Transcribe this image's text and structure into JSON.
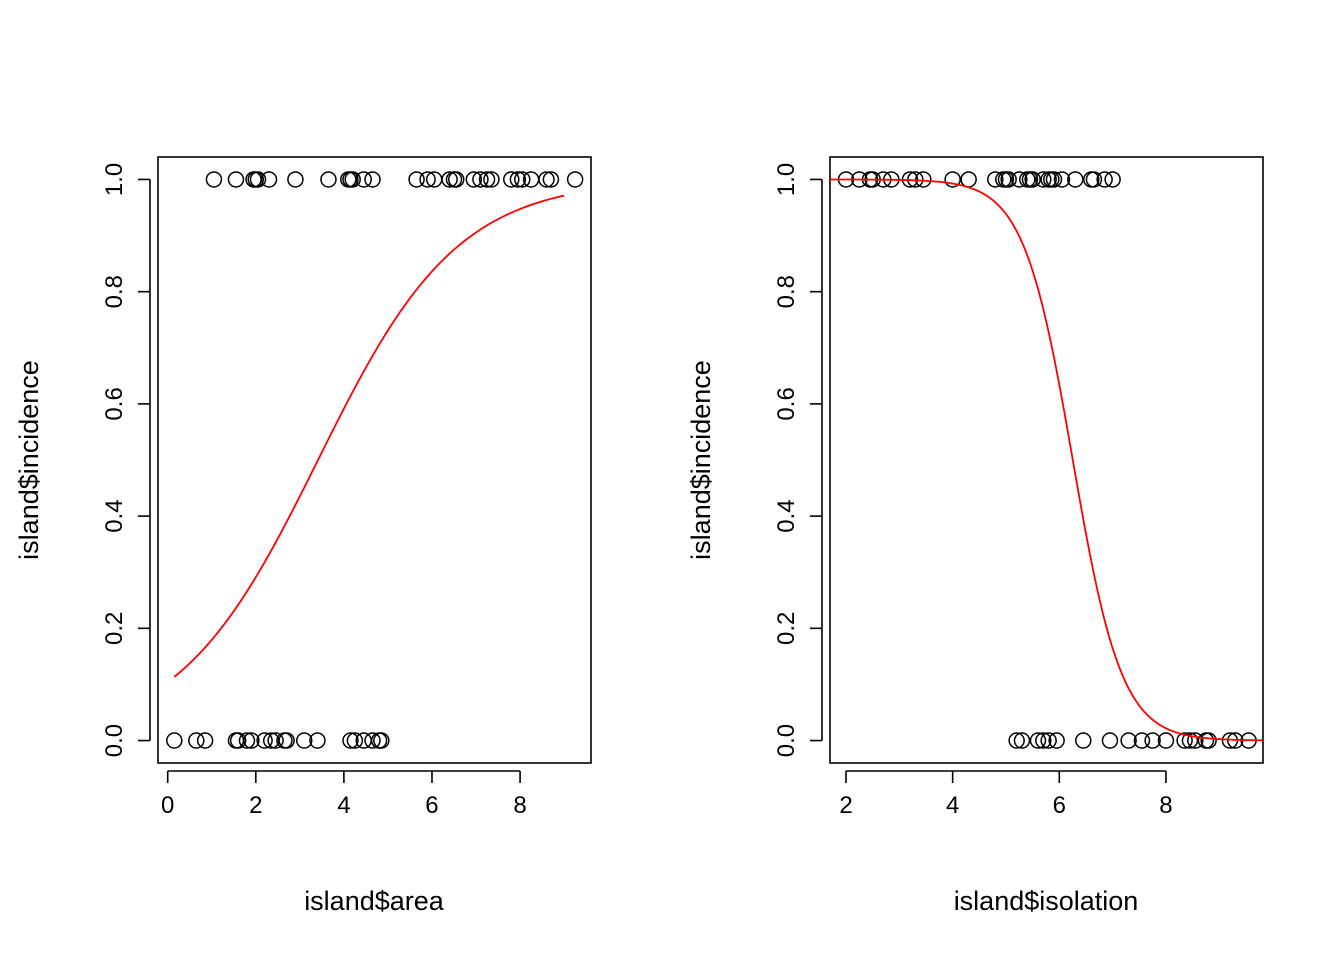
{
  "chart_data": [
    {
      "type": "scatter",
      "xlabel": "island$area",
      "ylabel": "island$incidence",
      "xlim": [
        -0.22,
        9.61
      ],
      "ylim": [
        -0.04,
        1.04
      ],
      "xticks": [
        0,
        2,
        4,
        6,
        8
      ],
      "yticks": [
        0.0,
        0.2,
        0.4,
        0.6,
        0.8,
        1.0
      ],
      "xtick_labels": [
        "0",
        "2",
        "4",
        "6",
        "8"
      ],
      "ytick_labels": [
        "0.0",
        "0.2",
        "0.4",
        "0.6",
        "0.8",
        "1.0"
      ],
      "points_y1": [
        1.05,
        1.55,
        1.95,
        2.0,
        2.05,
        2.3,
        2.9,
        3.65,
        4.1,
        4.15,
        4.2,
        4.45,
        4.65,
        5.65,
        5.9,
        6.05,
        6.4,
        6.5,
        6.55,
        6.95,
        7.1,
        7.25,
        7.35,
        7.8,
        7.95,
        8.05,
        8.25,
        8.6,
        8.7,
        9.25
      ],
      "points_y0": [
        0.15,
        0.65,
        0.85,
        1.55,
        1.6,
        1.8,
        1.9,
        2.2,
        2.35,
        2.45,
        2.65,
        2.7,
        3.1,
        3.4,
        4.15,
        4.25,
        4.45,
        4.65,
        4.8,
        4.85
      ],
      "fit": {
        "color": "#ff0000",
        "intercept": -2.15,
        "slope": 0.63,
        "x_from": 0.15,
        "x_to": 9.0
      },
      "grid": false
    },
    {
      "type": "scatter",
      "xlabel": "island$isolation",
      "ylabel": "island$incidence",
      "xlim": [
        1.7,
        9.82
      ],
      "ylim": [
        -0.04,
        1.04
      ],
      "xticks": [
        2,
        4,
        6,
        8
      ],
      "yticks": [
        0.0,
        0.2,
        0.4,
        0.6,
        0.8,
        1.0
      ],
      "xtick_labels": [
        "2",
        "4",
        "6",
        "8"
      ],
      "ytick_labels": [
        "0.0",
        "0.2",
        "0.4",
        "0.6",
        "0.8",
        "1.0"
      ],
      "points_y1": [
        2.0,
        2.25,
        2.45,
        2.5,
        2.7,
        2.85,
        3.2,
        3.3,
        3.45,
        4.0,
        4.3,
        4.8,
        4.95,
        5.0,
        5.05,
        5.25,
        5.4,
        5.45,
        5.5,
        5.7,
        5.8,
        5.85,
        5.9,
        6.05,
        6.3,
        6.6,
        6.65,
        6.85,
        7.0
      ],
      "points_y0": [
        5.2,
        5.3,
        5.6,
        5.7,
        5.8,
        5.95,
        6.45,
        6.95,
        7.3,
        7.55,
        7.75,
        8.0,
        8.35,
        8.45,
        8.55,
        8.75,
        8.8,
        9.2,
        9.3,
        9.55
      ],
      "fit": {
        "color": "#ff0000",
        "intercept": 13.6,
        "slope": -2.175,
        "x_from": 1.7,
        "x_to": 9.82
      },
      "grid": false
    }
  ]
}
